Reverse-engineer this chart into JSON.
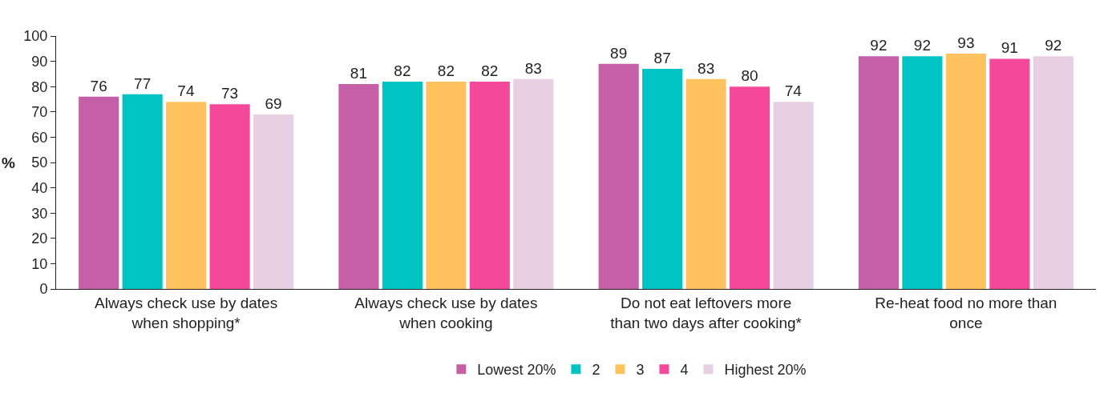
{
  "chart_data": {
    "type": "bar",
    "ylabel": "%",
    "categories": [
      "Always check use by dates when shopping*",
      "Always check use by dates when cooking",
      "Do not eat leftovers more than two days after cooking*",
      "Re-heat food no more than once"
    ],
    "series": [
      {
        "name": "Lowest 20%",
        "color": "#c45fa8",
        "values": [
          76,
          81,
          89,
          92
        ]
      },
      {
        "name": "2",
        "color": "#00c3c3",
        "values": [
          77,
          82,
          87,
          92
        ]
      },
      {
        "name": "3",
        "color": "#fec35f",
        "values": [
          74,
          82,
          83,
          93
        ]
      },
      {
        "name": "4",
        "color": "#f4489a",
        "values": [
          73,
          82,
          80,
          91
        ]
      },
      {
        "name": "Highest 20%",
        "color": "#e8d0e4",
        "values": [
          69,
          83,
          74,
          92
        ]
      }
    ],
    "ylim": [
      0,
      100
    ],
    "yticks": [
      0,
      10,
      20,
      30,
      40,
      50,
      60,
      70,
      80,
      90,
      100
    ],
    "data_labels": true,
    "legend": "bottom"
  }
}
